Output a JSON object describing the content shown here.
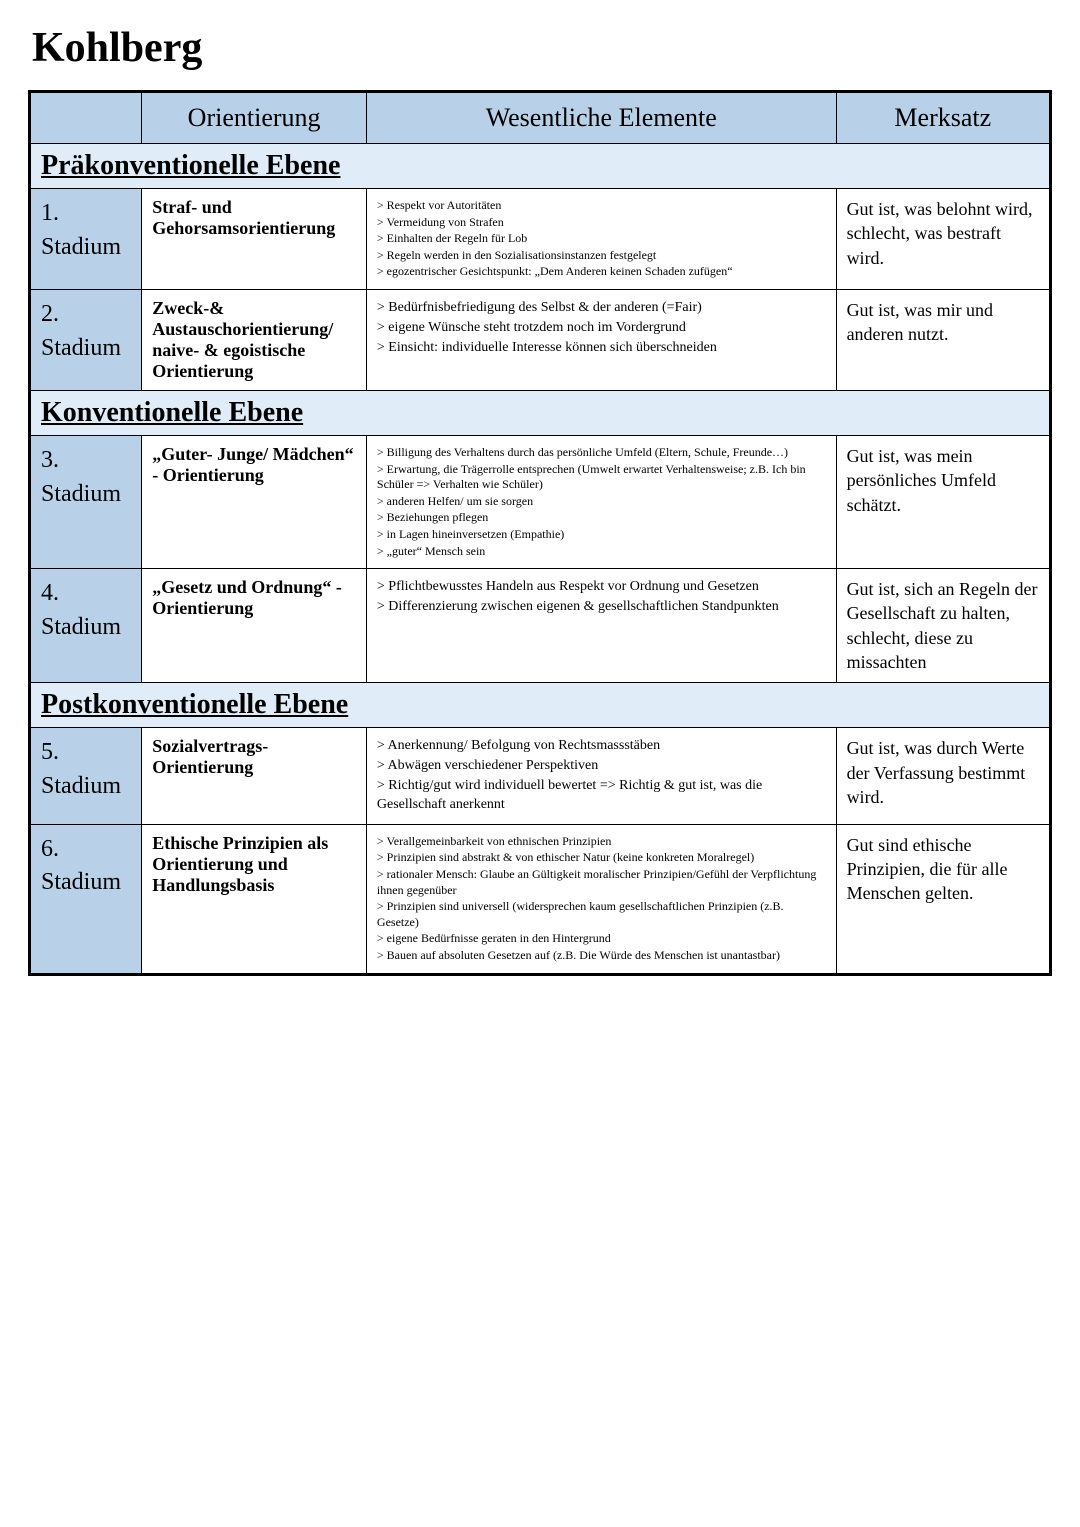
{
  "title": "Kohlberg",
  "colors": {
    "header_bg": "#b9d1e8",
    "level_bg": "#e0ecf7",
    "border": "#000000",
    "page_bg": "#ffffff",
    "text": "#000000"
  },
  "columns": {
    "corner": "",
    "orientierung": "Orientierung",
    "elemente": "Wesentliche Elemente",
    "merksatz": "Merksatz"
  },
  "levels": [
    {
      "label": "Präkonventionelle Ebene",
      "stages": [
        {
          "num_line1": "1.",
          "num_line2": "Stadium",
          "orientierung": "Straf- und Gehorsamsorientierung",
          "elements_small": true,
          "elements": [
            "> Respekt vor Autoritäten",
            "> Vermeidung von Strafen",
            "> Einhalten der Regeln für Lob",
            "> Regeln werden in den Sozialisationsinstanzen festgelegt",
            "> egozentrischer Gesichtspunkt: „Dem Anderen keinen Schaden zufügen“"
          ],
          "merksatz": "Gut ist, was belohnt wird, schlecht, was bestraft wird."
        },
        {
          "num_line1": "2.",
          "num_line2": "Stadium",
          "orientierung": "Zweck-& Austauschorientierung/ naive- & egoistische Orientierung",
          "elements_small": false,
          "elements": [
            "> Bedürfnisbefriedigung des Selbst & der anderen (=Fair)",
            "> eigene Wünsche  steht trotzdem noch im Vordergrund",
            "> Einsicht: individuelle Interesse können sich überschneiden"
          ],
          "merksatz": "Gut ist, was mir und anderen nutzt."
        }
      ]
    },
    {
      "label": "Konventionelle Ebene",
      "stages": [
        {
          "num_line1": "3.",
          "num_line2": "Stadium",
          "orientierung": "„Guter- Junge/ Mädchen“ - Orientierung",
          "elements_small": true,
          "elements": [
            "> Billigung des Verhaltens durch das persönliche Umfeld (Eltern, Schule, Freunde…)",
            "> Erwartung, die Trägerrolle entsprechen (Umwelt erwartet Verhaltensweise; z.B. Ich bin Schüler => Verhalten wie Schüler)",
            "> anderen Helfen/ um sie sorgen",
            "> Beziehungen pflegen",
            "> in Lagen hineinversetzen (Empathie)",
            "> „guter“ Mensch sein"
          ],
          "merksatz": "Gut ist, was mein persönliches Umfeld schätzt."
        },
        {
          "num_line1": "4.",
          "num_line2": "Stadium",
          "orientierung": "„Gesetz und Ordnung“ - Orientierung",
          "elements_small": false,
          "elements": [
            "> Pflichtbewusstes Handeln aus Respekt vor Ordnung und Gesetzen",
            "> Differenzierung zwischen eigenen & gesellschaftlichen Standpunkten"
          ],
          "merksatz": "Gut ist, sich an Regeln der Gesellschaft zu halten, schlecht, diese zu missachten"
        }
      ]
    },
    {
      "label": "Postkonventionelle Ebene",
      "stages": [
        {
          "num_line1": "5.",
          "num_line2": "Stadium",
          "orientierung": "Sozialvertrags-Orientierung",
          "elements_small": false,
          "elements": [
            "> Anerkennung/ Befolgung  von Rechtsmassstäben",
            "> Abwägen verschiedener Perspektiven",
            "> Richtig/gut wird individuell bewertet => Richtig & gut ist, was die Gesellschaft anerkennt"
          ],
          "merksatz": "Gut ist, was durch Werte der Verfassung bestimmt wird."
        },
        {
          "num_line1": "6.",
          "num_line2": "Stadium",
          "orientierung": "Ethische Prinzipien als Orientierung und Handlungsbasis",
          "elements_small": true,
          "elements": [
            "> Verallgemeinbarkeit von ethnischen Prinzipien",
            "> Prinzipien sind abstrakt & von ethischer Natur (keine konkreten Moralregel)",
            "> rationaler Mensch: Glaube an Gültigkeit moralischer Prinzipien/Gefühl der Verpflichtung ihnen gegenüber",
            "> Prinzipien sind universell  (widersprechen kaum gesellschaftlichen Prinzipien (z.B. Gesetze)",
            "> eigene Bedürfnisse geraten in den Hintergrund",
            "> Bauen auf absoluten Gesetzen auf (z.B. Die Würde des Menschen ist unantastbar)"
          ],
          "merksatz": "Gut sind ethische Prinzipien, die für alle Menschen gelten."
        }
      ]
    }
  ]
}
